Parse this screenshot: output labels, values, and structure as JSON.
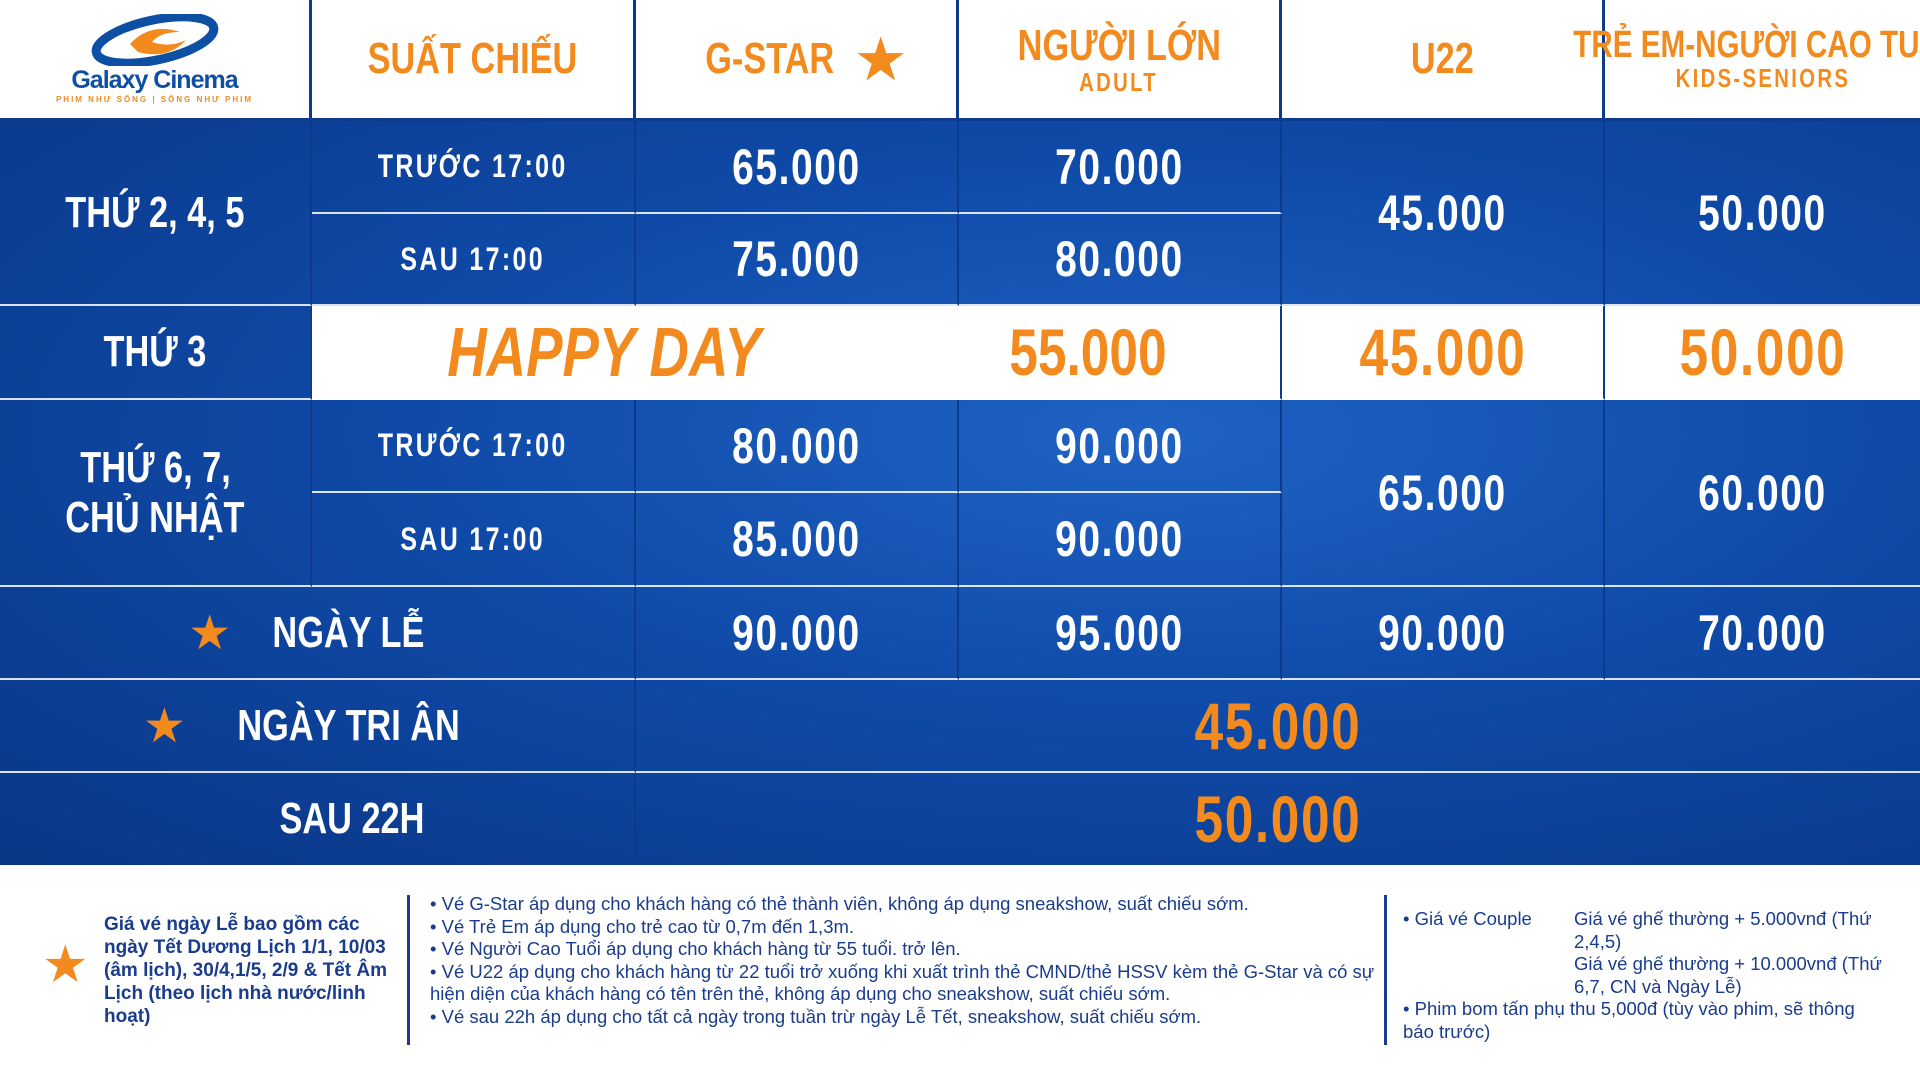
{
  "logo": {
    "name": "Galaxy Cinema",
    "tagline": "PHIM NHƯ SỐNG | SỐNG NHƯ PHIM"
  },
  "header": {
    "showtime": "SUẤT CHIẾU",
    "gstar": "G-STAR",
    "adult": "NGƯỜI LỚN",
    "adult_sub": "ADULT",
    "u22": "U22",
    "kids": "TRẺ EM-NGƯỜI CAO TUỔI",
    "kids_sub": "KIDS-SENIORS"
  },
  "rows": {
    "weekday": {
      "day": "THỨ 2, 4, 5",
      "before": "TRƯỚC 17:00",
      "after": "SAU 17:00",
      "gstar_before": "65.000",
      "gstar_after": "75.000",
      "adult_before": "70.000",
      "adult_after": "80.000",
      "u22": "45.000",
      "kids": "50.000"
    },
    "tuesday": {
      "day": "THỨ 3",
      "label": "HAPPY DAY",
      "price": "55.000",
      "u22": "45.000",
      "kids": "50.000"
    },
    "weekend": {
      "day_line1": "THỨ 6, 7,",
      "day_line2": "CHỦ NHẬT",
      "before": "TRƯỚC 17:00",
      "after": "SAU 17:00",
      "gstar_before": "80.000",
      "gstar_after": "85.000",
      "adult_before": "90.000",
      "adult_after": "90.000",
      "u22": "65.000",
      "kids": "60.000"
    },
    "holiday": {
      "day": "NGÀY LỄ",
      "gstar": "90.000",
      "adult": "95.000",
      "u22": "90.000",
      "kids": "70.000"
    },
    "tri_an": {
      "day": "NGÀY TRI ÂN",
      "price": "45.000"
    },
    "after22": {
      "day": "SAU 22H",
      "price": "50.000"
    }
  },
  "footer": {
    "holiday_note": "Giá vé ngày Lễ bao gồm các ngày Tết Dương Lịch 1/1, 10/03 (âm lịch), 30/4,1/5, 2/9 & Tết Âm Lịch (theo lịch nhà nước/linh hoạt)",
    "notes": [
      "• Vé G-Star áp dụng cho khách hàng có thẻ thành viên, không áp dụng sneakshow, suất chiếu sớm.",
      "• Vé Trẻ Em áp dụng cho trẻ cao từ 0,7m đến 1,3m.",
      "• Vé Người Cao Tuổi áp dụng cho khách hàng từ 55 tuổi. trở lên.",
      "•  Vé U22 áp dụng cho khách hàng từ 22 tuổi trở xuống khi xuất trình thẻ CMND/thẻ HSSV kèm thẻ G-Star và có sự hiện diện của khách hàng có tên trên thẻ, không áp dụng cho sneakshow, suất chiếu sớm.",
      "•  Vé sau 22h áp dụng cho tất cả ngày trong tuần trừ ngày Lễ Tết, sneakshow, suất chiếu sớm."
    ],
    "couple_label": "• Giá vé Couple",
    "couple_1": "Giá vé ghế thường + 5.000vnđ (Thứ 2,4,5)",
    "couple_2": "Giá vé ghế thường + 10.000vnđ (Thứ 6,7, CN và Ngày Lễ)",
    "blockbuster": "•  Phim bom tấn phụ thu 5,000đ (tùy vào phim, sẽ thông báo trước)"
  },
  "colors": {
    "accent": "#f28a1e",
    "blue": "#0f4aa8",
    "text": "#1a3c8c"
  }
}
